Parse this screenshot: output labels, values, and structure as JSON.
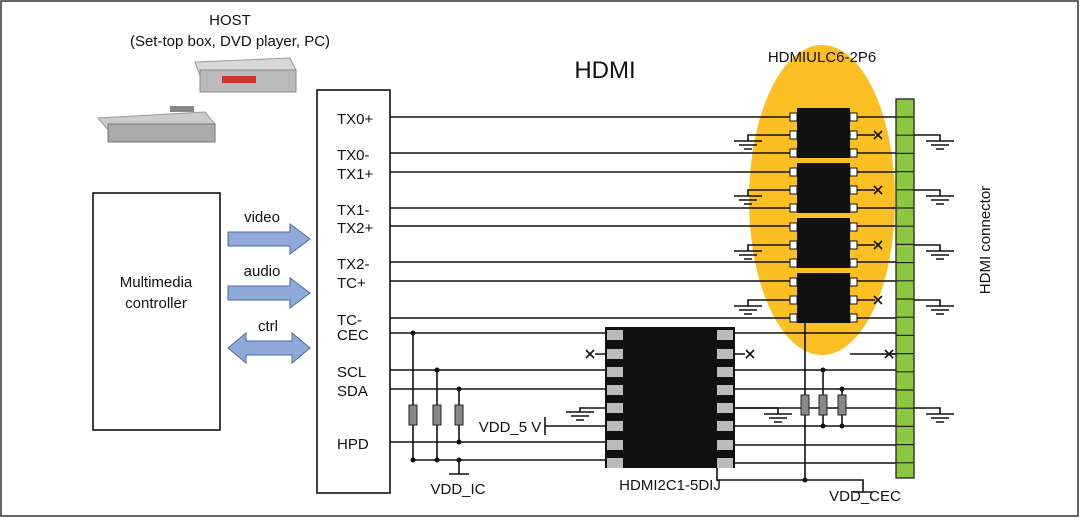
{
  "host": {
    "title": "HOST",
    "subtitle": "(Set-top box, DVD player, PC)"
  },
  "protocol_label": "HDMI",
  "controller": {
    "line1": "Multimedia",
    "line2": "controller"
  },
  "arrows": {
    "video": "video",
    "audio": "audio",
    "ctrl": "ctrl"
  },
  "signals": [
    "TX0+",
    "TX0-",
    "TX1+",
    "TX1-",
    "TX2+",
    "TX2-",
    "TC+",
    "TC-",
    "CEC",
    "SCL",
    "SDA",
    "HPD"
  ],
  "esd_array_label": "HDMIULC6-2P6",
  "controller_ic_label": "HDMI2C1-5DIJ",
  "connector_label": "HDMI connector",
  "supplies": {
    "vdd_5v": "VDD_5 V",
    "vdd_ic": "VDD_IC",
    "vdd_cec": "VDD_CEC"
  },
  "colors": {
    "ellipse": "#fbbf24",
    "connector": "#8dc63f",
    "arrow": "#8fa9d8",
    "resistor": "#888888"
  }
}
